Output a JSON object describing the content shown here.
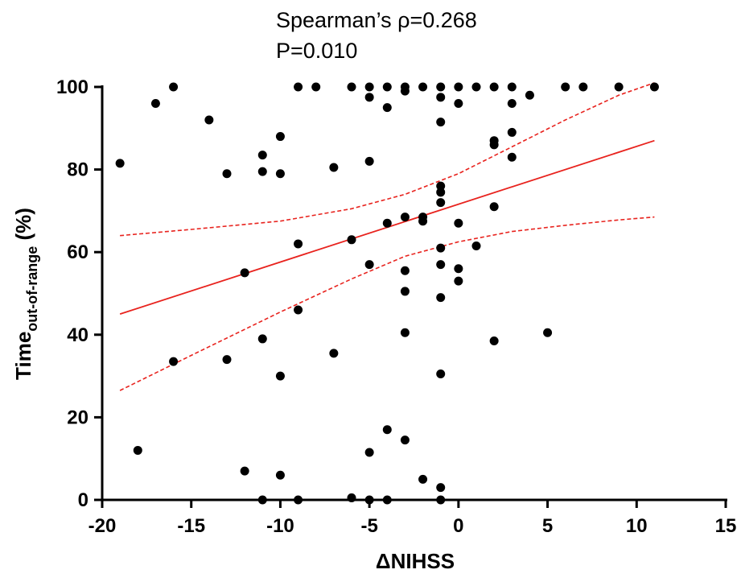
{
  "chart_data": {
    "type": "scatter",
    "annotations": [
      "Spearman’s ρ=0.268",
      "P=0.010"
    ],
    "xlabel": "ΔNIHSS",
    "ylabel": {
      "main": "Time",
      "subscript": "out-of-range",
      "suffix": " (%)"
    },
    "xlim": [
      -20,
      15
    ],
    "ylim": [
      0,
      100
    ],
    "xticks": [
      -20,
      -15,
      -10,
      -5,
      0,
      5,
      10,
      15
    ],
    "yticks": [
      0,
      20,
      40,
      60,
      80,
      100
    ],
    "grid": false,
    "legend": "none",
    "point_color": "#000000",
    "fit_color": "#e8231e",
    "points": [
      {
        "x": -19,
        "y": 81.5
      },
      {
        "x": -18,
        "y": 12
      },
      {
        "x": -17,
        "y": 96
      },
      {
        "x": -16,
        "y": 100
      },
      {
        "x": -16,
        "y": 33.5
      },
      {
        "x": -14,
        "y": 92
      },
      {
        "x": -13,
        "y": 79
      },
      {
        "x": -13,
        "y": 34
      },
      {
        "x": -12,
        "y": 55
      },
      {
        "x": -12,
        "y": 7
      },
      {
        "x": -11,
        "y": 83.5
      },
      {
        "x": -11,
        "y": 79.5
      },
      {
        "x": -11,
        "y": 39
      },
      {
        "x": -11,
        "y": 0
      },
      {
        "x": -10,
        "y": 88
      },
      {
        "x": -10,
        "y": 79
      },
      {
        "x": -10,
        "y": 30
      },
      {
        "x": -10,
        "y": 6
      },
      {
        "x": -9,
        "y": 100
      },
      {
        "x": -9,
        "y": 62
      },
      {
        "x": -9,
        "y": 46
      },
      {
        "x": -9,
        "y": 0
      },
      {
        "x": -8,
        "y": 100
      },
      {
        "x": -7,
        "y": 80.5
      },
      {
        "x": -7,
        "y": 35.5
      },
      {
        "x": -6,
        "y": 100
      },
      {
        "x": -6,
        "y": 63
      },
      {
        "x": -6,
        "y": 0.5
      },
      {
        "x": -5,
        "y": 100
      },
      {
        "x": -5,
        "y": 97.5
      },
      {
        "x": -5,
        "y": 82
      },
      {
        "x": -5,
        "y": 57
      },
      {
        "x": -5,
        "y": 11.5
      },
      {
        "x": -5,
        "y": 0
      },
      {
        "x": -4,
        "y": 100
      },
      {
        "x": -4,
        "y": 95
      },
      {
        "x": -4,
        "y": 67
      },
      {
        "x": -4,
        "y": 17
      },
      {
        "x": -4,
        "y": 0
      },
      {
        "x": -3,
        "y": 100
      },
      {
        "x": -3,
        "y": 99
      },
      {
        "x": -3,
        "y": 68.5
      },
      {
        "x": -3,
        "y": 55.5
      },
      {
        "x": -3,
        "y": 50.5
      },
      {
        "x": -3,
        "y": 40.5
      },
      {
        "x": -3,
        "y": 14.5
      },
      {
        "x": -2,
        "y": 100
      },
      {
        "x": -2,
        "y": 68.5
      },
      {
        "x": -2,
        "y": 67.5
      },
      {
        "x": -2,
        "y": 5
      },
      {
        "x": -1,
        "y": 100
      },
      {
        "x": -1,
        "y": 97.5
      },
      {
        "x": -1,
        "y": 91.5
      },
      {
        "x": -1,
        "y": 76
      },
      {
        "x": -1,
        "y": 74.5
      },
      {
        "x": -1,
        "y": 72
      },
      {
        "x": -1,
        "y": 61
      },
      {
        "x": -1,
        "y": 57
      },
      {
        "x": -1,
        "y": 49
      },
      {
        "x": -1,
        "y": 30.5
      },
      {
        "x": -1,
        "y": 3
      },
      {
        "x": -1,
        "y": 0
      },
      {
        "x": 0,
        "y": 100
      },
      {
        "x": 0,
        "y": 96
      },
      {
        "x": 0,
        "y": 67
      },
      {
        "x": 0,
        "y": 56
      },
      {
        "x": 0,
        "y": 53
      },
      {
        "x": 1,
        "y": 100
      },
      {
        "x": 1,
        "y": 61.5
      },
      {
        "x": 2,
        "y": 100
      },
      {
        "x": 2,
        "y": 87
      },
      {
        "x": 2,
        "y": 86
      },
      {
        "x": 2,
        "y": 71
      },
      {
        "x": 2,
        "y": 38.5
      },
      {
        "x": 3,
        "y": 100
      },
      {
        "x": 3,
        "y": 96
      },
      {
        "x": 3,
        "y": 89
      },
      {
        "x": 3,
        "y": 83
      },
      {
        "x": 4,
        "y": 98
      },
      {
        "x": 5,
        "y": 40.5
      },
      {
        "x": 6,
        "y": 100
      },
      {
        "x": 7,
        "y": 100
      },
      {
        "x": 9,
        "y": 100
      },
      {
        "x": 11,
        "y": 100
      }
    ],
    "fit_line": {
      "x": [
        -19,
        11
      ],
      "y": [
        45,
        87
      ]
    },
    "ci_upper": {
      "x": [
        -19,
        -15,
        -10,
        -6,
        -3,
        0,
        3,
        6,
        9,
        11
      ],
      "y": [
        64,
        65.5,
        67.5,
        70.5,
        74,
        79,
        85.5,
        92,
        98,
        101
      ]
    },
    "ci_lower": {
      "x": [
        -19,
        -15,
        -10,
        -6,
        -3,
        0,
        3,
        6,
        9,
        11
      ],
      "y": [
        26.5,
        35,
        45.5,
        53.5,
        59,
        62.5,
        65,
        66.5,
        67.8,
        68.5
      ]
    }
  }
}
